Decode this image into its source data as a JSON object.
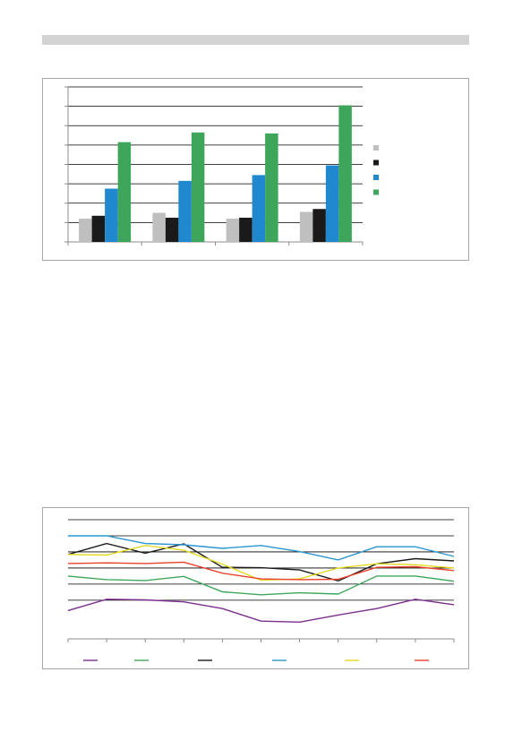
{
  "colors": {
    "header_bar": "#d3d3d3",
    "frame_border": "#a6a6a6",
    "axis": "#8c8c8c",
    "gridline": "#000000"
  },
  "bar_chart": {
    "type": "bar",
    "categories": [
      "",
      "",
      "",
      ""
    ],
    "series": [
      {
        "color": "#bfbfbf",
        "values": [
          12,
          15,
          12,
          15.5
        ]
      },
      {
        "color": "#1a1a1a",
        "values": [
          13.5,
          12.5,
          12.5,
          17
        ]
      },
      {
        "color": "#1f88cf",
        "values": [
          27.5,
          31.5,
          34.5,
          39.5
        ]
      },
      {
        "color": "#3ea65a",
        "values": [
          51.5,
          56.5,
          56,
          70.5
        ]
      }
    ],
    "ylim": [
      0,
      80
    ],
    "y_gridlines": [
      10,
      20,
      30,
      40,
      50,
      60,
      70,
      80
    ],
    "grid": true,
    "legend": "right"
  },
  "line_chart": {
    "type": "line",
    "x": [
      0,
      1,
      2,
      3,
      4,
      5,
      6,
      7,
      8,
      9,
      10
    ],
    "series": [
      {
        "color": "#7a2f8c",
        "values": [
          -3.2,
          0.3,
          0.1,
          -0.5,
          -2.6,
          -6.5,
          -6.8,
          -4.6,
          -2.6,
          0.3,
          -1.4
        ]
      },
      {
        "color": "#3ea65a",
        "values": [
          7.5,
          6.4,
          6.1,
          7.4,
          2.6,
          1.7,
          2.3,
          1.9,
          7.5,
          7.5,
          5.9
        ]
      },
      {
        "color": "#1a1a1a",
        "values": [
          14.2,
          17.6,
          14.6,
          17.5,
          10.2,
          10.1,
          9.4,
          6.0,
          11.3,
          12.9,
          12.2
        ]
      },
      {
        "color": "#2a95d0",
        "values": [
          20.0,
          20.0,
          17.6,
          17.2,
          16.1,
          17.0,
          15.1,
          12.5,
          16.6,
          16.6,
          13.6
        ]
      },
      {
        "color": "#e5d820",
        "values": [
          14.2,
          14.0,
          17.0,
          15.5,
          11.2,
          6.2,
          6.6,
          10.0,
          11.3,
          11.0,
          10.0
        ]
      },
      {
        "color": "#e8412c",
        "values": [
          11.4,
          11.6,
          11.4,
          11.8,
          8.4,
          6.6,
          6.4,
          6.5,
          10.2,
          10.4,
          9.2
        ]
      }
    ],
    "ylim": [
      -12,
      25
    ],
    "y_gridlines": [
      0,
      5,
      10,
      15,
      20,
      25
    ],
    "grid": true,
    "legend": "bottom"
  }
}
